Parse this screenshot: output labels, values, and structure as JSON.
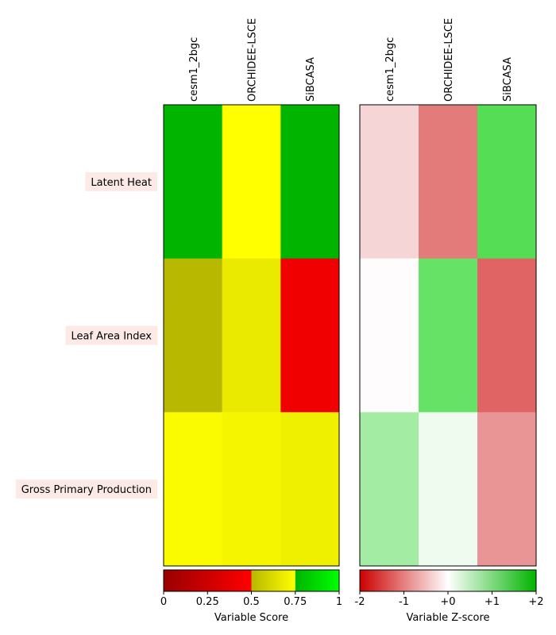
{
  "chart_data": [
    {
      "type": "heatmap",
      "title": "",
      "columns": [
        "cesm1_2bgc",
        "ORCHIDEE-LSCE",
        "SiBCASA"
      ],
      "rows": [
        "Latent Heat",
        "Leaf Area Index",
        "Gross Primary Production"
      ],
      "cell_colors": [
        [
          "#00b400",
          "#ffff00",
          "#00b400"
        ],
        [
          "#b8b800",
          "#eaea00",
          "#f00000"
        ],
        [
          "#fafa00",
          "#f5f500",
          "#efef00"
        ]
      ],
      "colorbar": {
        "label": "Variable Score",
        "range": [
          0,
          1
        ],
        "ticks": [
          "0",
          "0.25",
          "0.5",
          "0.75",
          "1"
        ],
        "tick_values": [
          0,
          0.25,
          0.5,
          0.75,
          1
        ]
      }
    },
    {
      "type": "heatmap",
      "title": "",
      "columns": [
        "cesm1_2bgc",
        "ORCHIDEE-LSCE",
        "SiBCASA"
      ],
      "rows": [
        "Latent Heat",
        "Leaf Area Index",
        "Gross Primary Production"
      ],
      "cell_colors": [
        [
          "#f5d5d5",
          "#e47b7b",
          "#55dd55"
        ],
        [
          "#fffcfd",
          "#66e266",
          "#e06464"
        ],
        [
          "#a3eca3",
          "#f0fbf0",
          "#e99595"
        ]
      ],
      "colorbar": {
        "label": "Variable Z-score",
        "range": [
          -2,
          2
        ],
        "ticks": [
          "-2",
          "-1",
          "+0",
          "+1",
          "+2"
        ],
        "tick_values": [
          -2,
          -1,
          0,
          1,
          2
        ]
      }
    }
  ],
  "colors": {
    "row_label_background": "#fdeae6",
    "score_scale": [
      "#990000",
      "#ff0000",
      "#b8b800",
      "#ffff00",
      "#00b400",
      "#00ff00"
    ],
    "zscore_scale": [
      "#cc0000",
      "#ffffff",
      "#00b400"
    ]
  }
}
